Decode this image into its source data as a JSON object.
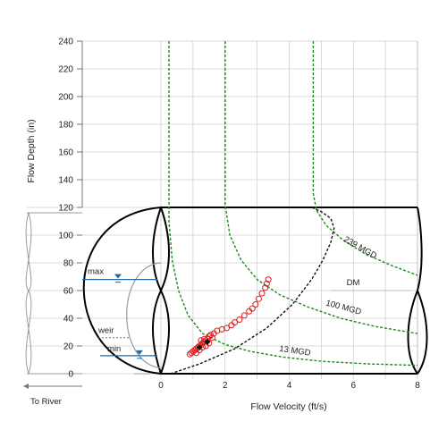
{
  "chart_data": {
    "type": "scatter",
    "xlabel": "Flow Velocity (ft/s)",
    "ylabel": "Flow Depth (in)",
    "xlim": [
      0,
      8
    ],
    "ylim": [
      0,
      240
    ],
    "x_ticks": [
      "0",
      "2",
      "4",
      "6",
      "8"
    ],
    "y_ticks": [
      "0",
      "20",
      "40",
      "60",
      "80",
      "100",
      "120",
      "140",
      "160",
      "180",
      "200",
      "220",
      "240"
    ],
    "grid": true,
    "pipe_diameter_in": 120,
    "levels": {
      "max": {
        "label": "max",
        "depth_in": 68
      },
      "weir": {
        "label": "weir",
        "depth_in": 26
      },
      "min": {
        "label": "min",
        "depth_in": 13
      }
    },
    "left_pipe_label": "To River",
    "region_label": "DM",
    "flow_curves": [
      {
        "name": "239 MGD",
        "label": "239 MGD",
        "color": "#1a8a1a",
        "points": [
          [
            4.75,
            240
          ],
          [
            4.75,
            130
          ],
          [
            4.85,
            118
          ],
          [
            5.15,
            107
          ],
          [
            5.7,
            96
          ],
          [
            6.4,
            86
          ],
          [
            7.2,
            78
          ],
          [
            8.0,
            71
          ]
        ]
      },
      {
        "name": "100 MGD",
        "label": "100 MGD",
        "color": "#1a8a1a",
        "points": [
          [
            2.0,
            240
          ],
          [
            2.0,
            122
          ],
          [
            2.15,
            100
          ],
          [
            2.5,
            82
          ],
          [
            3.0,
            68
          ],
          [
            3.7,
            57
          ],
          [
            4.6,
            48
          ],
          [
            5.6,
            40
          ],
          [
            6.7,
            34
          ],
          [
            8.0,
            29
          ]
        ]
      },
      {
        "name": "13 MGD",
        "label": "13 MGD",
        "color": "#1a8a1a",
        "points": [
          [
            0.25,
            240
          ],
          [
            0.25,
            110
          ],
          [
            0.35,
            82
          ],
          [
            0.55,
            60
          ],
          [
            0.85,
            42
          ],
          [
            1.3,
            29
          ],
          [
            2.0,
            21
          ],
          [
            2.8,
            16
          ],
          [
            3.8,
            12
          ],
          [
            5.0,
            9
          ],
          [
            6.5,
            7
          ],
          [
            8.0,
            6
          ]
        ]
      }
    ],
    "capacity_curve": {
      "color": "#111111",
      "points": [
        [
          0.3,
          0
        ],
        [
          1.2,
          7
        ],
        [
          2.3,
          18
        ],
        [
          3.3,
          33
        ],
        [
          4.1,
          50
        ],
        [
          4.7,
          68
        ],
        [
          5.05,
          82
        ],
        [
          5.3,
          95
        ],
        [
          5.4,
          105
        ],
        [
          5.3,
          112
        ],
        [
          5.0,
          117
        ],
        [
          4.7,
          120
        ]
      ]
    },
    "observed": {
      "color": "#e01b1b",
      "points": [
        [
          3.35,
          68
        ],
        [
          3.25,
          62
        ],
        [
          3.3,
          65
        ],
        [
          3.15,
          58
        ],
        [
          3.05,
          54
        ],
        [
          2.95,
          50
        ],
        [
          2.85,
          47
        ],
        [
          2.75,
          45
        ],
        [
          2.6,
          42
        ],
        [
          2.45,
          39
        ],
        [
          2.3,
          37
        ],
        [
          2.2,
          35
        ],
        [
          2.05,
          33
        ],
        [
          1.9,
          32
        ],
        [
          1.75,
          31
        ],
        [
          1.65,
          29
        ],
        [
          1.55,
          28
        ],
        [
          1.5,
          27
        ],
        [
          1.45,
          25
        ],
        [
          1.4,
          24
        ],
        [
          1.35,
          23
        ],
        [
          1.3,
          22
        ],
        [
          1.25,
          21
        ],
        [
          1.2,
          20
        ],
        [
          1.15,
          19
        ],
        [
          1.1,
          18
        ],
        [
          1.05,
          17
        ],
        [
          1.0,
          16
        ],
        [
          0.95,
          15
        ],
        [
          0.9,
          14
        ],
        [
          1.3,
          19
        ],
        [
          1.4,
          20
        ],
        [
          1.5,
          22
        ],
        [
          1.2,
          17
        ],
        [
          1.35,
          25
        ],
        [
          1.6,
          26
        ],
        [
          1.1,
          15
        ],
        [
          1.25,
          24
        ]
      ]
    },
    "markers": [
      {
        "x": 1.2,
        "y": 19
      },
      {
        "x": 1.45,
        "y": 23
      }
    ]
  }
}
